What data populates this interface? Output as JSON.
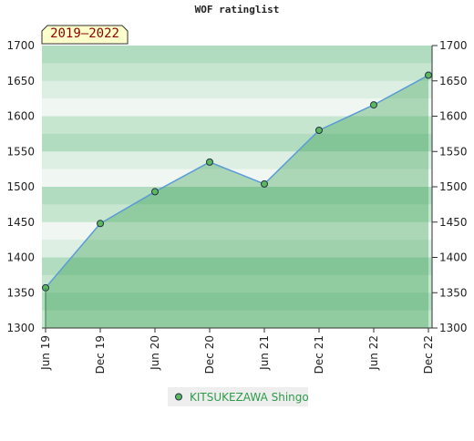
{
  "chart_data": {
    "type": "line",
    "title": "WOF ratinglist",
    "period_label": "2019–2022",
    "categories": [
      "Jun 19",
      "Dec 19",
      "Jun 20",
      "Dec 20",
      "Jun 21",
      "Dec 21",
      "Jun 22",
      "Dec 22"
    ],
    "series": [
      {
        "name": "KITSUKEZAWA Shingo",
        "color": "#5b9bd5",
        "marker_color": "#5cb85c",
        "values": [
          1357,
          1448,
          1493,
          1535,
          1504,
          1580,
          1616,
          1658
        ]
      }
    ],
    "ylim": [
      1300,
      1700
    ],
    "yticks": [
      1300,
      1350,
      1400,
      1450,
      1500,
      1550,
      1600,
      1650,
      1700
    ],
    "y2lim": [
      1300,
      1700
    ],
    "y2ticks": [
      1300,
      1350,
      1400,
      1450,
      1500,
      1550,
      1600,
      1650,
      1700
    ]
  }
}
